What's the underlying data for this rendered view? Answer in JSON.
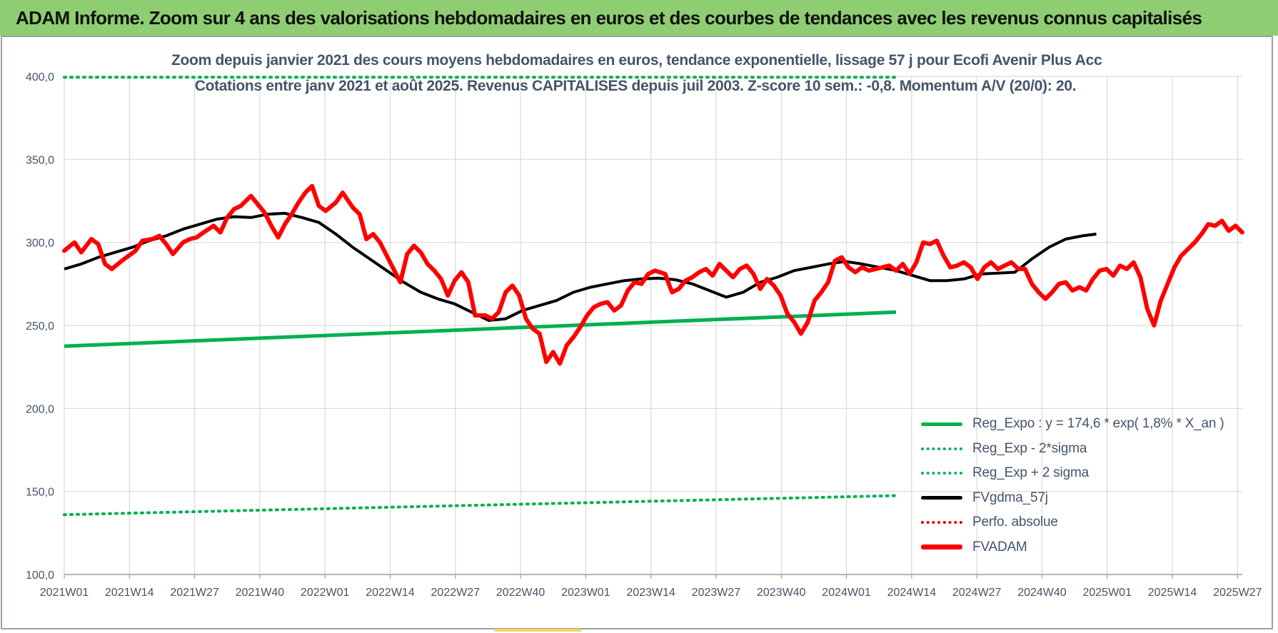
{
  "header": {
    "banner_title": "ADAM Informe. Zoom sur 4 ans des valorisations hebdomadaires en euros et des courbes de tendances avec les revenus connus capitalisés"
  },
  "chart_data": {
    "type": "line",
    "title": "Zoom depuis janvier 2021 des cours moyens hebdomadaires en euros, tendance exponentielle, lissage 57 j pour Ecofi Avenir Plus Acc",
    "subtitle": "Cotations entre janv 2021 et août 2025.  Revenus CAPITALISES depuis juil 2003. Z-score 10 sem.: -0,8. Momentum A/V (20/0): 20.",
    "ylim": [
      100,
      400
    ],
    "yticks": [
      "100,0",
      "150,0",
      "200,0",
      "250,0",
      "300,0",
      "350,0",
      "400,0"
    ],
    "xticks": [
      "2021W01",
      "2021W14",
      "2021W27",
      "2021W40",
      "2022W01",
      "2022W14",
      "2022W27",
      "2022W40",
      "2023W01",
      "2023W14",
      "2023W27",
      "2023W40",
      "2024W01",
      "2024W14",
      "2024W27",
      "2024W40",
      "2025W01",
      "2025W14",
      "2025W27"
    ],
    "grid": true,
    "legend_position": "bottom-right",
    "series": [
      {
        "name": "Reg_Expo : y = 174,6 * exp( 1,8% *  X_an )",
        "style": "solid",
        "color": "#00b050",
        "points": [
          [
            0,
            237.5
          ],
          [
            245,
            258.0
          ]
        ]
      },
      {
        "name": "Reg_Exp - 2*sigma",
        "style": "dotted",
        "color": "#00b050",
        "points": [
          [
            0,
            136.0
          ],
          [
            245,
            147.5
          ]
        ]
      },
      {
        "name": "Reg_Exp + 2 sigma",
        "style": "dotted",
        "color": "#00b050",
        "points": [
          [
            0,
            399.5
          ],
          [
            245,
            399.5
          ]
        ]
      },
      {
        "name": "FVgdma_57j",
        "style": "solid",
        "color": "#000000",
        "points": [
          [
            0,
            284
          ],
          [
            5,
            287
          ],
          [
            10,
            291
          ],
          [
            15,
            294
          ],
          [
            20,
            297
          ],
          [
            25,
            301
          ],
          [
            30,
            304
          ],
          [
            35,
            308
          ],
          [
            40,
            311
          ],
          [
            45,
            314
          ],
          [
            50,
            315.5
          ],
          [
            55,
            315
          ],
          [
            60,
            317
          ],
          [
            65,
            317.5
          ],
          [
            70,
            315
          ],
          [
            75,
            312
          ],
          [
            80,
            305
          ],
          [
            85,
            297
          ],
          [
            90,
            290
          ],
          [
            95,
            283
          ],
          [
            100,
            276
          ],
          [
            105,
            270
          ],
          [
            110,
            266
          ],
          [
            115,
            263
          ],
          [
            120,
            258
          ],
          [
            125,
            253
          ],
          [
            130,
            254
          ],
          [
            135,
            259
          ],
          [
            140,
            262
          ],
          [
            145,
            265
          ],
          [
            150,
            270
          ],
          [
            155,
            273
          ],
          [
            160,
            275
          ],
          [
            165,
            277
          ],
          [
            170,
            278
          ],
          [
            175,
            278.5
          ],
          [
            180,
            277.5
          ],
          [
            185,
            275
          ],
          [
            190,
            271
          ],
          [
            195,
            267
          ],
          [
            200,
            270
          ],
          [
            205,
            276
          ],
          [
            210,
            279
          ],
          [
            215,
            283
          ],
          [
            220,
            285
          ],
          [
            225,
            287
          ],
          [
            230,
            288.5
          ],
          [
            235,
            287
          ],
          [
            240,
            285
          ],
          [
            245,
            283
          ],
          [
            250,
            280
          ],
          [
            255,
            277
          ],
          [
            260,
            277
          ],
          [
            265,
            278
          ],
          [
            270,
            281
          ],
          [
            275,
            281.5
          ],
          [
            280,
            282
          ],
          [
            285,
            290
          ],
          [
            290,
            297
          ],
          [
            295,
            302
          ],
          [
            300,
            304
          ],
          [
            304,
            305
          ]
        ]
      },
      {
        "name": "Perfo. absolue",
        "style": "dotted",
        "color": "#e00000",
        "points": []
      },
      {
        "name": "FVADAM",
        "style": "solid",
        "color": "#ff0000",
        "points": [
          [
            0,
            295
          ],
          [
            3,
            300
          ],
          [
            5,
            294
          ],
          [
            8,
            302
          ],
          [
            10,
            299
          ],
          [
            12,
            287
          ],
          [
            14,
            284
          ],
          [
            17,
            289
          ],
          [
            19,
            292
          ],
          [
            21,
            295
          ],
          [
            23,
            301
          ],
          [
            26,
            302
          ],
          [
            28,
            304
          ],
          [
            30,
            299
          ],
          [
            32,
            293
          ],
          [
            35,
            300
          ],
          [
            37,
            302
          ],
          [
            39,
            303
          ],
          [
            41,
            306
          ],
          [
            44,
            310
          ],
          [
            46,
            306
          ],
          [
            48,
            315
          ],
          [
            50,
            320
          ],
          [
            52,
            322
          ],
          [
            55,
            328
          ],
          [
            57,
            323
          ],
          [
            59,
            318
          ],
          [
            61,
            310
          ],
          [
            63,
            303
          ],
          [
            65,
            311
          ],
          [
            67,
            317
          ],
          [
            69,
            324
          ],
          [
            71,
            330
          ],
          [
            73,
            334
          ],
          [
            75,
            322
          ],
          [
            77,
            319
          ],
          [
            80,
            324
          ],
          [
            82,
            330
          ],
          [
            85,
            321
          ],
          [
            87,
            317
          ],
          [
            89,
            302
          ],
          [
            91,
            305
          ],
          [
            93,
            300
          ],
          [
            95,
            292
          ],
          [
            97,
            284
          ],
          [
            99,
            276
          ],
          [
            101,
            293
          ],
          [
            103,
            298
          ],
          [
            105,
            294
          ],
          [
            107,
            287
          ],
          [
            109,
            283
          ],
          [
            111,
            278
          ],
          [
            113,
            268
          ],
          [
            115,
            277
          ],
          [
            117,
            282
          ],
          [
            119,
            276
          ],
          [
            121,
            256
          ],
          [
            124,
            256
          ],
          [
            126,
            254
          ],
          [
            128,
            258
          ],
          [
            130,
            270
          ],
          [
            132,
            274
          ],
          [
            134,
            268
          ],
          [
            136,
            254
          ],
          [
            138,
            248
          ],
          [
            140,
            245
          ],
          [
            142,
            228
          ],
          [
            144,
            234
          ],
          [
            146,
            227
          ],
          [
            148,
            238
          ],
          [
            150,
            243
          ],
          [
            152,
            249
          ],
          [
            154,
            256
          ],
          [
            156,
            261
          ],
          [
            158,
            263
          ],
          [
            160,
            264
          ],
          [
            162,
            259
          ],
          [
            164,
            262
          ],
          [
            166,
            271
          ],
          [
            168,
            276
          ],
          [
            170,
            275
          ],
          [
            172,
            281
          ],
          [
            174,
            283
          ],
          [
            177,
            281
          ],
          [
            179,
            270
          ],
          [
            181,
            272
          ],
          [
            183,
            277
          ],
          [
            185,
            279
          ],
          [
            187,
            282
          ],
          [
            189,
            284
          ],
          [
            191,
            280
          ],
          [
            193,
            287
          ],
          [
            195,
            283
          ],
          [
            197,
            279
          ],
          [
            199,
            284
          ],
          [
            201,
            286
          ],
          [
            203,
            281
          ],
          [
            205,
            272
          ],
          [
            207,
            278
          ],
          [
            209,
            274
          ],
          [
            211,
            268
          ],
          [
            213,
            257
          ],
          [
            215,
            252
          ],
          [
            217,
            245
          ],
          [
            219,
            252
          ],
          [
            221,
            265
          ],
          [
            223,
            270
          ],
          [
            225,
            276
          ],
          [
            227,
            289
          ],
          [
            229,
            291
          ],
          [
            231,
            285
          ],
          [
            233,
            282
          ],
          [
            235,
            285
          ],
          [
            237,
            283
          ],
          [
            239,
            284
          ],
          [
            241,
            285
          ],
          [
            243,
            286
          ],
          [
            245,
            283
          ],
          [
            247,
            287
          ],
          [
            249,
            281
          ],
          [
            251,
            288
          ],
          [
            253,
            300
          ],
          [
            255,
            299
          ],
          [
            257,
            301
          ],
          [
            259,
            292
          ],
          [
            261,
            285
          ],
          [
            263,
            286
          ],
          [
            265,
            288
          ],
          [
            267,
            285
          ],
          [
            269,
            278
          ],
          [
            271,
            285
          ],
          [
            273,
            288
          ],
          [
            275,
            284
          ],
          [
            277,
            286
          ],
          [
            279,
            288
          ],
          [
            281,
            284
          ],
          [
            283,
            284
          ],
          [
            285,
            275
          ],
          [
            287,
            270
          ],
          [
            289,
            266
          ],
          [
            291,
            270
          ],
          [
            293,
            275
          ],
          [
            295,
            276
          ],
          [
            297,
            271
          ],
          [
            299,
            273
          ],
          [
            301,
            271
          ],
          [
            303,
            278
          ],
          [
            305,
            283
          ],
          [
            307,
            284
          ],
          [
            309,
            280
          ],
          [
            311,
            286
          ],
          [
            313,
            284
          ],
          [
            315,
            288
          ],
          [
            317,
            279
          ],
          [
            319,
            260
          ],
          [
            321,
            250
          ],
          [
            323,
            265
          ],
          [
            325,
            275
          ],
          [
            327,
            285
          ],
          [
            329,
            292
          ],
          [
            331,
            296
          ],
          [
            333,
            300
          ],
          [
            335,
            305
          ],
          [
            337,
            311
          ],
          [
            339,
            310
          ],
          [
            341,
            313
          ],
          [
            343,
            307
          ],
          [
            345,
            310
          ],
          [
            347,
            306
          ]
        ]
      }
    ]
  }
}
